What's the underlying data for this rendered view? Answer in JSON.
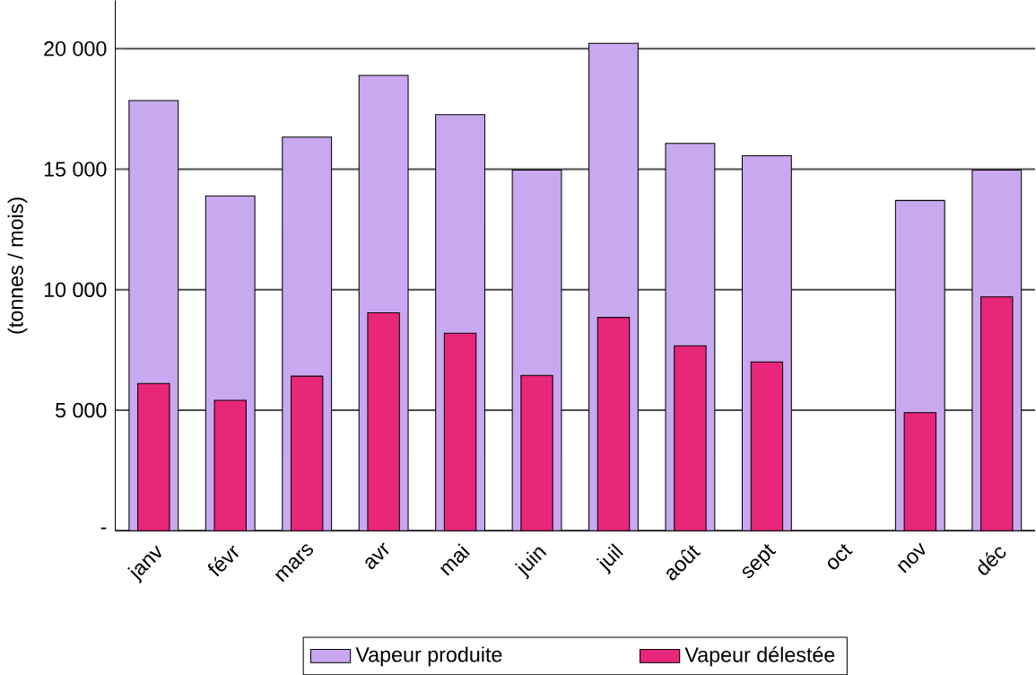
{
  "chart_data": {
    "type": "bar",
    "ylabel": "(tonnes / mois)",
    "categories": [
      "janv",
      "févr",
      "mars",
      "avr",
      "mai",
      "juin",
      "juil",
      "août",
      "sept",
      "oct",
      "nov",
      "déc"
    ],
    "series": [
      {
        "name": "Vapeur produite",
        "color": "#c8a8ee",
        "values": [
          17850,
          13890,
          16330,
          18890,
          17260,
          14960,
          20220,
          16070,
          15560,
          null,
          13700,
          14960
        ]
      },
      {
        "name": "Vapeur délestée",
        "color": "#e8267a",
        "values": [
          6110,
          5410,
          6410,
          9040,
          8190,
          6440,
          8850,
          7670,
          7000,
          null,
          4900,
          9700
        ]
      }
    ],
    "ylim": [
      0,
      22000
    ],
    "yticks": [
      {
        "value": 0,
        "label": "-"
      },
      {
        "value": 5000,
        "label": "5 000"
      },
      {
        "value": 10000,
        "label": "10 000"
      },
      {
        "value": 15000,
        "label": "15 000"
      },
      {
        "value": 20000,
        "label": "20 000"
      }
    ],
    "grid": "y",
    "legend": "bottom"
  }
}
